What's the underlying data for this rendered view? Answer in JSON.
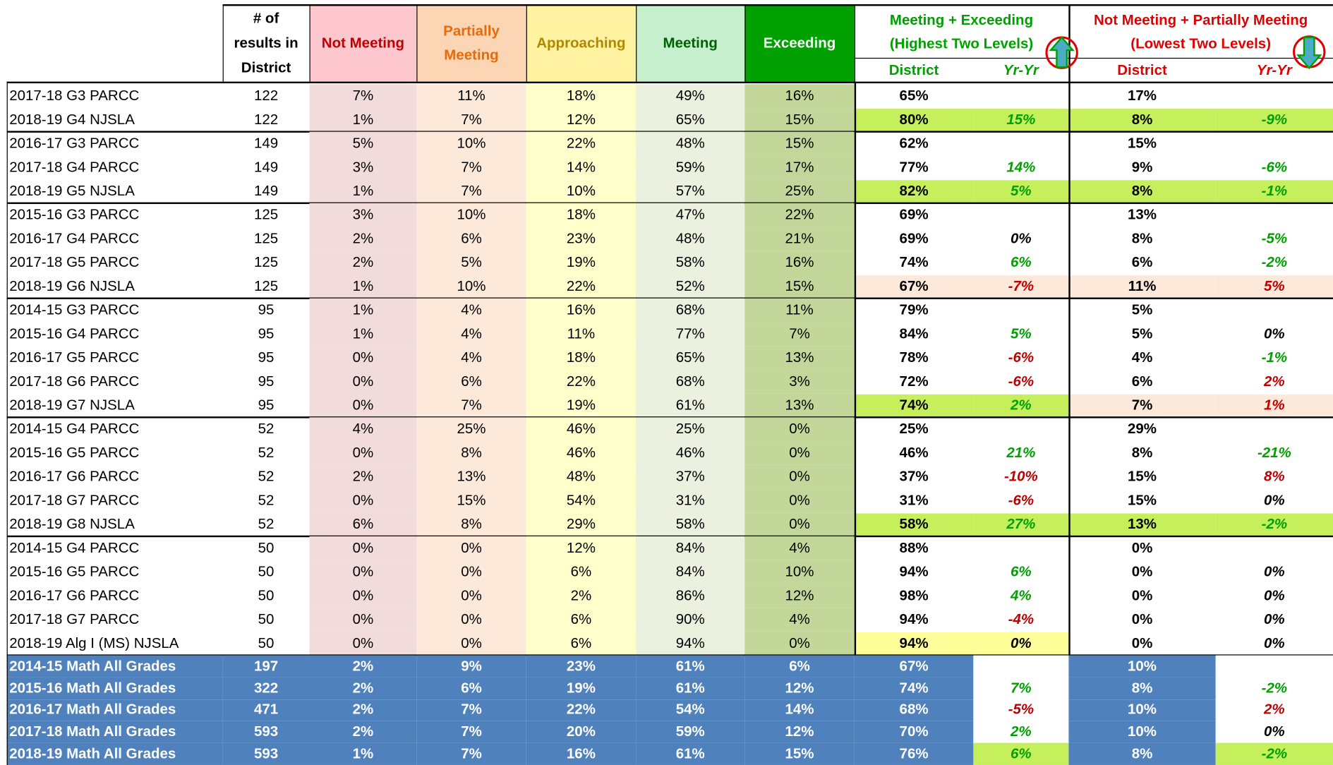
{
  "header": {
    "count": [
      "# of",
      "results in",
      "District"
    ],
    "levels": [
      "Not Meeting",
      [
        "Partially",
        "Meeting"
      ],
      "Approaching",
      "Meeting",
      "Exceeding"
    ],
    "top_two": [
      "Meeting + Exceeding",
      "(Highest Two Levels)"
    ],
    "bottom_two": [
      "Not Meeting + Partially Meeting",
      "(Lowest Two Levels)"
    ],
    "sub": [
      "District",
      "Yr-Yr"
    ]
  },
  "groups": [
    {
      "rows": [
        [
          "2017-18 G3 PARCC",
          122,
          "7%",
          "11%",
          "18%",
          "49%",
          "16%",
          "65%",
          null,
          "17%",
          null
        ],
        [
          "2018-19 G4 NJSLA",
          122,
          "1%",
          "7%",
          "12%",
          "65%",
          "15%",
          "80%",
          "15%",
          "8%",
          "-9%"
        ]
      ]
    },
    {
      "rows": [
        [
          "2016-17 G3 PARCC",
          149,
          "5%",
          "10%",
          "22%",
          "48%",
          "15%",
          "62%",
          null,
          "15%",
          null
        ],
        [
          "2017-18 G4 PARCC",
          149,
          "3%",
          "7%",
          "14%",
          "59%",
          "17%",
          "77%",
          "14%",
          "9%",
          "-6%"
        ],
        [
          "2018-19 G5 NJSLA",
          149,
          "1%",
          "7%",
          "10%",
          "57%",
          "25%",
          "82%",
          "5%",
          "8%",
          "-1%"
        ]
      ]
    },
    {
      "rows": [
        [
          "2015-16 G3 PARCC",
          125,
          "3%",
          "10%",
          "18%",
          "47%",
          "22%",
          "69%",
          null,
          "13%",
          null
        ],
        [
          "2016-17 G4 PARCC",
          125,
          "2%",
          "6%",
          "23%",
          "48%",
          "21%",
          "69%",
          "0%",
          "8%",
          "-5%"
        ],
        [
          "2017-18 G5 PARCC",
          125,
          "2%",
          "5%",
          "19%",
          "58%",
          "16%",
          "74%",
          "6%",
          "6%",
          "-2%"
        ],
        [
          "2018-19 G6 NJSLA",
          125,
          "1%",
          "10%",
          "22%",
          "52%",
          "15%",
          "67%",
          "-7%",
          "11%",
          "5%"
        ]
      ]
    },
    {
      "rows": [
        [
          "2014-15 G3 PARCC",
          95,
          "1%",
          "4%",
          "16%",
          "68%",
          "11%",
          "79%",
          null,
          "5%",
          null
        ],
        [
          "2015-16 G4 PARCC",
          95,
          "1%",
          "4%",
          "11%",
          "77%",
          "7%",
          "84%",
          "5%",
          "5%",
          "0%"
        ],
        [
          "2016-17 G5 PARCC",
          95,
          "0%",
          "4%",
          "18%",
          "65%",
          "13%",
          "78%",
          "-6%",
          "4%",
          "-1%"
        ],
        [
          "2017-18 G6 PARCC",
          95,
          "0%",
          "6%",
          "22%",
          "68%",
          "3%",
          "72%",
          "-6%",
          "6%",
          "2%"
        ],
        [
          "2018-19 G7 NJSLA",
          95,
          "0%",
          "7%",
          "19%",
          "61%",
          "13%",
          "74%",
          "2%",
          "7%",
          "1%"
        ]
      ]
    },
    {
      "rows": [
        [
          "2014-15 G4 PARCC",
          52,
          "4%",
          "25%",
          "46%",
          "25%",
          "0%",
          "25%",
          null,
          "29%",
          null
        ],
        [
          "2015-16 G5 PARCC",
          52,
          "0%",
          "8%",
          "46%",
          "46%",
          "0%",
          "46%",
          "21%",
          "8%",
          "-21%"
        ],
        [
          "2016-17 G6 PARCC",
          52,
          "2%",
          "13%",
          "48%",
          "37%",
          "0%",
          "37%",
          "-10%",
          "15%",
          "8%"
        ],
        [
          "2017-18 G7 PARCC",
          52,
          "0%",
          "15%",
          "54%",
          "31%",
          "0%",
          "31%",
          "-6%",
          "15%",
          "0%"
        ],
        [
          "2018-19 G8 NJSLA",
          52,
          "6%",
          "8%",
          "29%",
          "58%",
          "0%",
          "58%",
          "27%",
          "13%",
          "-2%"
        ]
      ]
    },
    {
      "rows": [
        [
          "2014-15 G4 PARCC",
          50,
          "0%",
          "0%",
          "12%",
          "84%",
          "4%",
          "88%",
          null,
          "0%",
          null
        ],
        [
          "2015-16 G5 PARCC",
          50,
          "0%",
          "0%",
          "6%",
          "84%",
          "10%",
          "94%",
          "6%",
          "0%",
          "0%"
        ],
        [
          "2016-17 G6 PARCC",
          50,
          "0%",
          "0%",
          "2%",
          "86%",
          "12%",
          "98%",
          "4%",
          "0%",
          "0%"
        ],
        [
          "2017-18 G7 PARCC",
          50,
          "0%",
          "0%",
          "6%",
          "90%",
          "4%",
          "94%",
          "-4%",
          "0%",
          "0%"
        ],
        [
          "2018-19 Alg I (MS) NJSLA",
          50,
          "0%",
          "0%",
          "6%",
          "94%",
          "0%",
          "94%",
          "0%",
          "0%",
          "0%"
        ]
      ]
    }
  ],
  "summary": {
    "rows": [
      [
        "2014-15 Math All Grades",
        197,
        "2%",
        "9%",
        "23%",
        "61%",
        "6%",
        "67%",
        null,
        "10%",
        null
      ],
      [
        "2015-16 Math All Grades",
        322,
        "2%",
        "6%",
        "19%",
        "61%",
        "12%",
        "74%",
        "7%",
        "8%",
        "-2%"
      ],
      [
        "2016-17 Math All Grades",
        471,
        "2%",
        "7%",
        "22%",
        "54%",
        "14%",
        "68%",
        "-5%",
        "10%",
        "2%"
      ],
      [
        "2017-18 Math All Grades",
        593,
        "2%",
        "7%",
        "20%",
        "59%",
        "12%",
        "70%",
        "2%",
        "10%",
        "0%"
      ],
      [
        "2018-19 Math All Grades",
        593,
        "1%",
        "7%",
        "16%",
        "61%",
        "15%",
        "76%",
        "6%",
        "8%",
        "-2%"
      ]
    ]
  }
}
